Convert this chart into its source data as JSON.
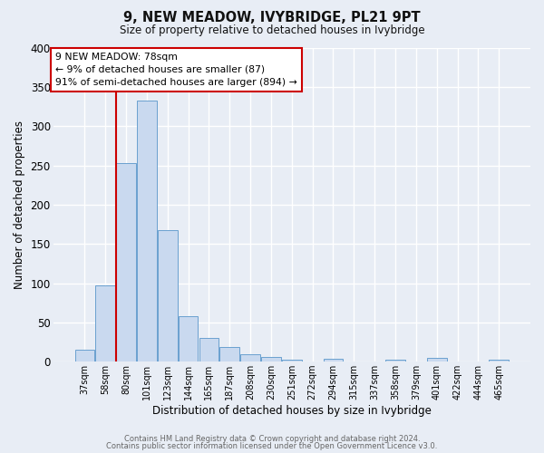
{
  "title": "9, NEW MEADOW, IVYBRIDGE, PL21 9PT",
  "subtitle": "Size of property relative to detached houses in Ivybridge",
  "xlabel": "Distribution of detached houses by size in Ivybridge",
  "ylabel": "Number of detached properties",
  "bar_labels": [
    "37sqm",
    "58sqm",
    "80sqm",
    "101sqm",
    "123sqm",
    "144sqm",
    "165sqm",
    "187sqm",
    "208sqm",
    "230sqm",
    "251sqm",
    "272sqm",
    "294sqm",
    "315sqm",
    "337sqm",
    "358sqm",
    "379sqm",
    "401sqm",
    "422sqm",
    "444sqm",
    "465sqm"
  ],
  "bar_values": [
    15,
    97,
    253,
    333,
    167,
    58,
    30,
    19,
    10,
    6,
    3,
    0,
    4,
    0,
    0,
    3,
    0,
    5,
    0,
    0,
    3
  ],
  "bar_color": "#c9d9ef",
  "bar_edge_color": "#6aa0cf",
  "background_color": "#e8edf5",
  "grid_color": "#ffffff",
  "marker_line_index": 2,
  "marker_line_color": "#cc0000",
  "annotation_line1": "9 NEW MEADOW: 78sqm",
  "annotation_line2": "← 9% of detached houses are smaller (87)",
  "annotation_line3": "91% of semi-detached houses are larger (894) →",
  "annotation_box_edgecolor": "#cc0000",
  "ylim": [
    0,
    400
  ],
  "yticks": [
    0,
    50,
    100,
    150,
    200,
    250,
    300,
    350,
    400
  ],
  "footer_line1": "Contains HM Land Registry data © Crown copyright and database right 2024.",
  "footer_line2": "Contains public sector information licensed under the Open Government Licence v3.0."
}
